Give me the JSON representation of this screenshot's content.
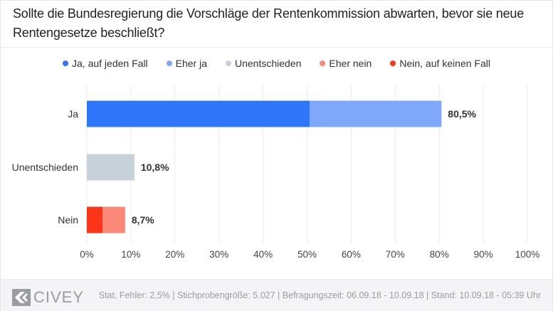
{
  "title": "Sollte die Bundesregierung die Vorschläge der Rentenkommission abwarten, bevor sie neue Rentengesetze beschließt?",
  "legend": [
    {
      "label": "Ja, auf jeden Fall",
      "color": "#2f76fb"
    },
    {
      "label": "Eher ja",
      "color": "#7fa8fb"
    },
    {
      "label": "Unentschieden",
      "color": "#c7d1da"
    },
    {
      "label": "Eher nein",
      "color": "#fb8878"
    },
    {
      "label": "Nein, auf keinen Fall",
      "color": "#fc3418"
    }
  ],
  "chart_data": {
    "type": "bar",
    "orientation": "horizontal",
    "stacked": true,
    "title": "Sollte die Bundesregierung die Vorschläge der Rentenkommission abwarten, bevor sie neue Rentengesetze beschließt?",
    "categories": [
      "Ja",
      "Unentschieden",
      "Nein"
    ],
    "series": [
      {
        "name": "Ja, auf jeden Fall",
        "color": "#2f76fb",
        "values": [
          50.6,
          0,
          0
        ]
      },
      {
        "name": "Eher ja",
        "color": "#7fa8fb",
        "values": [
          29.9,
          0,
          0
        ]
      },
      {
        "name": "Unentschieden",
        "color": "#c7d1da",
        "values": [
          0,
          10.8,
          0
        ]
      },
      {
        "name": "Nein, auf keinen Fall",
        "color": "#fc3418",
        "values": [
          0,
          0,
          3.6
        ]
      },
      {
        "name": "Eher nein",
        "color": "#fb8878",
        "values": [
          0,
          0,
          5.1
        ]
      }
    ],
    "totals": [
      80.5,
      10.8,
      8.7
    ],
    "total_labels": [
      "80,5%",
      "10,8%",
      "8,7%"
    ],
    "xlim": [
      0,
      100
    ],
    "xticks": [
      0,
      10,
      20,
      30,
      40,
      50,
      60,
      70,
      80,
      90,
      100
    ],
    "xtick_labels": [
      "0%",
      "10%",
      "20%",
      "30%",
      "40%",
      "50%",
      "60%",
      "70%",
      "80%",
      "90%",
      "100%"
    ],
    "xlabel": "",
    "ylabel": "",
    "grid": true,
    "legend_position": "top"
  },
  "footer": {
    "logo": "CIVEY",
    "meta": "Stat. Fehler: 2,5% | Stichprobengröße: 5.027 | Befragungszeit: 06.09.18 - 10.09.18 | Stand: 10.09.18 - 05:39 Uhr"
  }
}
